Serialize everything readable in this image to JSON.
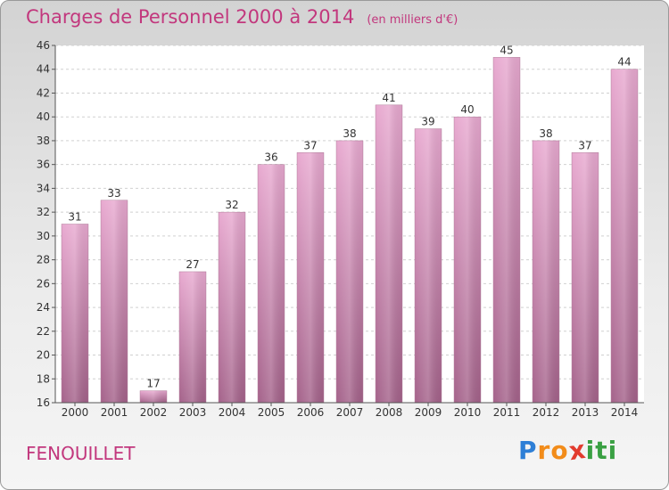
{
  "header": {
    "title": "Charges de Personnel 2000 à 2014",
    "unit": "(en milliers d'€)"
  },
  "footer": {
    "commune": "FENOUILLET",
    "logo_letters": [
      "P",
      "r",
      "o",
      "x",
      "i",
      "t",
      "i"
    ]
  },
  "colors": {
    "title": "#c2377d",
    "bar_top": "#e8a9d0",
    "bar_bottom": "#a4628a",
    "logo": [
      "#2e7fd6",
      "#f28c1a",
      "#f28c1a",
      "#e23b2e",
      "#3aa043",
      "#3aa043",
      "#3aa043"
    ]
  },
  "chart_data": {
    "type": "bar",
    "title": "Charges de Personnel 2000 à 2014",
    "subtitle": "(en milliers d'€)",
    "categories": [
      "2000",
      "2001",
      "2002",
      "2003",
      "2004",
      "2005",
      "2006",
      "2007",
      "2008",
      "2009",
      "2010",
      "2011",
      "2012",
      "2013",
      "2014"
    ],
    "values": [
      31,
      33,
      17,
      27,
      32,
      36,
      37,
      38,
      41,
      39,
      40,
      45,
      38,
      37,
      44
    ],
    "ylim": [
      16,
      46
    ],
    "yticks": [
      16,
      18,
      20,
      22,
      24,
      26,
      28,
      30,
      32,
      34,
      36,
      38,
      40,
      42,
      44,
      46
    ],
    "grid": true
  }
}
